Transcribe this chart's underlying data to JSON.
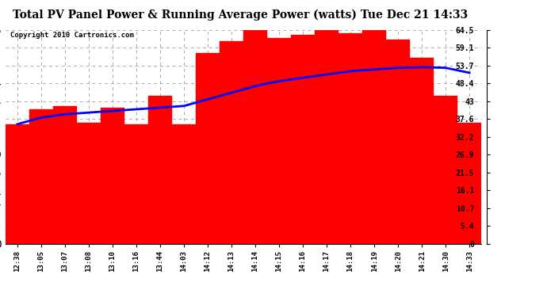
{
  "title": "Total PV Panel Power & Running Average Power (watts) Tue Dec 21 14:33",
  "copyright": "Copyright 2010 Cartronics.com",
  "x_labels": [
    "12:38",
    "13:05",
    "13:07",
    "13:08",
    "13:10",
    "13:16",
    "13:44",
    "14:03",
    "14:12",
    "14:13",
    "14:14",
    "14:15",
    "14:16",
    "14:17",
    "14:18",
    "14:19",
    "14:20",
    "14:21",
    "14:30",
    "14:33"
  ],
  "bar_values": [
    36.0,
    40.5,
    41.5,
    36.5,
    41.0,
    36.0,
    44.5,
    36.0,
    57.5,
    61.0,
    65.5,
    62.0,
    63.0,
    65.0,
    63.5,
    65.5,
    61.5,
    56.0,
    44.5,
    36.5
  ],
  "avg_values": [
    36.0,
    38.0,
    39.0,
    39.5,
    40.0,
    40.5,
    41.0,
    41.5,
    43.5,
    45.5,
    47.5,
    49.0,
    50.0,
    51.0,
    52.0,
    52.5,
    53.0,
    53.2,
    53.0,
    51.5
  ],
  "bar_color": "#FF0000",
  "line_color": "#0000FF",
  "background_color": "#FFFFFF",
  "grid_color": "#AAAAAA",
  "ylim": [
    0.0,
    64.5
  ],
  "yticks": [
    0.0,
    5.4,
    10.7,
    16.1,
    21.5,
    26.9,
    32.2,
    37.6,
    43.0,
    48.4,
    53.7,
    59.1,
    64.5
  ],
  "title_fontsize": 10,
  "copyright_fontsize": 6.5,
  "bar_edge_color": "#FF0000",
  "line_width": 2.0
}
